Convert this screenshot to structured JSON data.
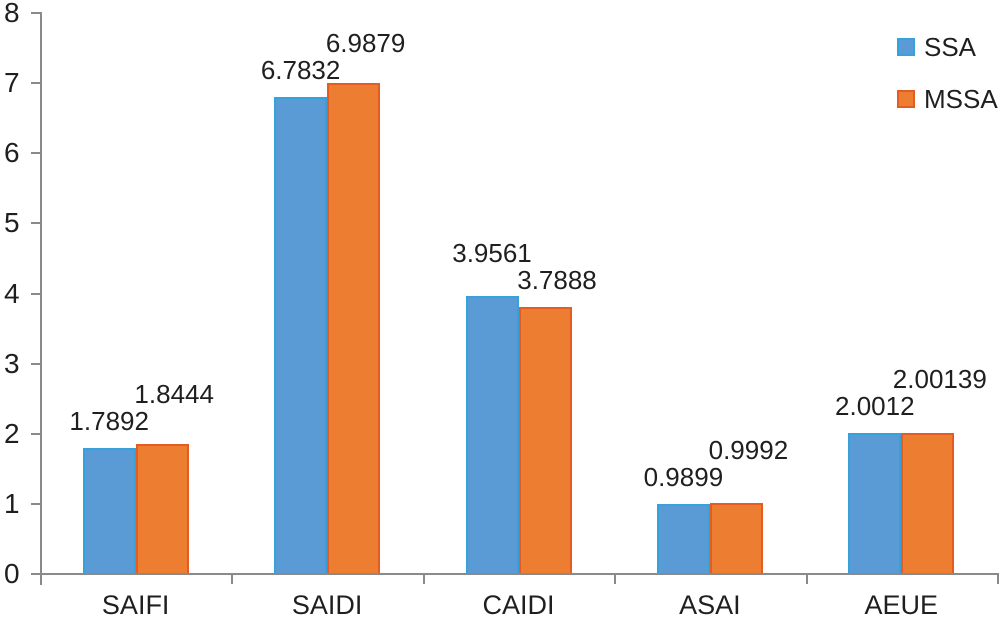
{
  "chart_data": {
    "type": "bar",
    "title": "",
    "xlabel": "",
    "ylabel": "",
    "categories": [
      "SAIFI",
      "SAIDI",
      "CAIDI",
      "ASAI",
      "AEUE"
    ],
    "series": [
      {
        "name": "SSA",
        "color": "#5B9BD5",
        "border_color": "#35A2DB",
        "values": [
          1.7892,
          6.7832,
          3.9561,
          0.9899,
          2.0012
        ],
        "value_labels": [
          "1.7892",
          "6.7832",
          "3.9561",
          "0.9899",
          "2.0012"
        ]
      },
      {
        "name": "MSSA",
        "color": "#ED7D31",
        "border_color": "#E45C21",
        "values": [
          1.8444,
          6.9879,
          3.7888,
          0.9992,
          2.00139
        ],
        "value_labels": [
          "1.8444",
          "6.9879",
          "3.7888",
          "0.9992",
          "2.00139"
        ]
      }
    ],
    "ylim": [
      0,
      8
    ],
    "ytick_step": 1,
    "ytick_labels": [
      "0",
      "1",
      "2",
      "3",
      "4",
      "5",
      "6",
      "7",
      "8"
    ],
    "grid": false,
    "legend_position": "top-right",
    "axis_color": "#8a8a8a",
    "text_color": "#1f1f1f",
    "background_color": "#ffffff"
  }
}
